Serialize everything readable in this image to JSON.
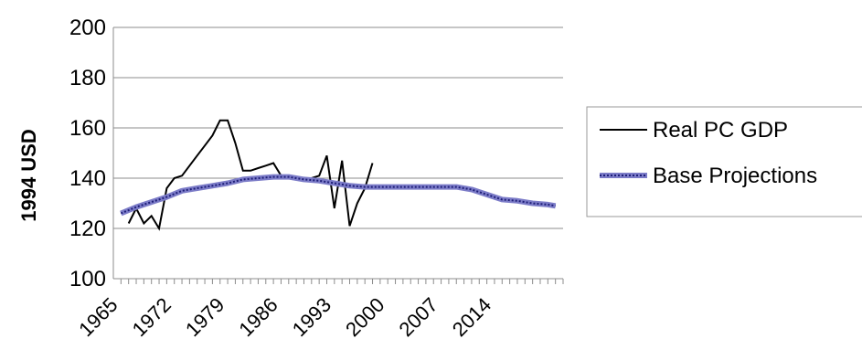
{
  "chart_data": {
    "type": "line",
    "title": "",
    "xlabel": "",
    "ylabel": "1994 USD",
    "xlim": [
      1965,
      2024
    ],
    "ylim": [
      100,
      200
    ],
    "y_ticks": [
      100,
      120,
      140,
      160,
      180,
      200
    ],
    "x_tick_labels": [
      "1965",
      "1972",
      "1979",
      "1986",
      "1993",
      "2000",
      "2007",
      "2014"
    ],
    "x_ticks": [
      1965,
      1972,
      1979,
      1986,
      1993,
      2000,
      2007,
      2014
    ],
    "grid": "horizontal",
    "legend_position": "right",
    "series": [
      {
        "name": "Real PC GDP",
        "color": "#000000",
        "style": "solid",
        "x": [
          1967,
          1968,
          1969,
          1970,
          1971,
          1972,
          1973,
          1974,
          1975,
          1976,
          1977,
          1978,
          1979,
          1980,
          1981,
          1982,
          1983,
          1984,
          1985,
          1986,
          1987,
          1988,
          1989,
          1990,
          1991,
          1992,
          1993,
          1994,
          1995,
          1996,
          1997,
          1998,
          1999
        ],
        "y": [
          122,
          128,
          122,
          125,
          120,
          136,
          140,
          141,
          145,
          149,
          153,
          157,
          163,
          163,
          154,
          143,
          143,
          144,
          145,
          146,
          141,
          140,
          140,
          140,
          140,
          141,
          149,
          128,
          147,
          121,
          130,
          136,
          146
        ]
      },
      {
        "name": "Base Projections",
        "color": "#4a4aa8",
        "style": "dotted-band",
        "x": [
          1966,
          1968,
          1970,
          1972,
          1974,
          1976,
          1978,
          1980,
          1982,
          1984,
          1986,
          1988,
          1990,
          1992,
          1994,
          1996,
          1998,
          2000,
          2002,
          2004,
          2006,
          2008,
          2010,
          2012,
          2014,
          2016,
          2018,
          2020,
          2022,
          2023
        ],
        "y": [
          126,
          128.5,
          130.5,
          132.5,
          135,
          136,
          137,
          138,
          139.5,
          140,
          140.5,
          140.5,
          139.5,
          139,
          138,
          137,
          136.5,
          136.5,
          136.5,
          136.5,
          136.5,
          136.5,
          136.5,
          135.5,
          133.5,
          131.5,
          131,
          130,
          129.5,
          129
        ]
      }
    ]
  }
}
